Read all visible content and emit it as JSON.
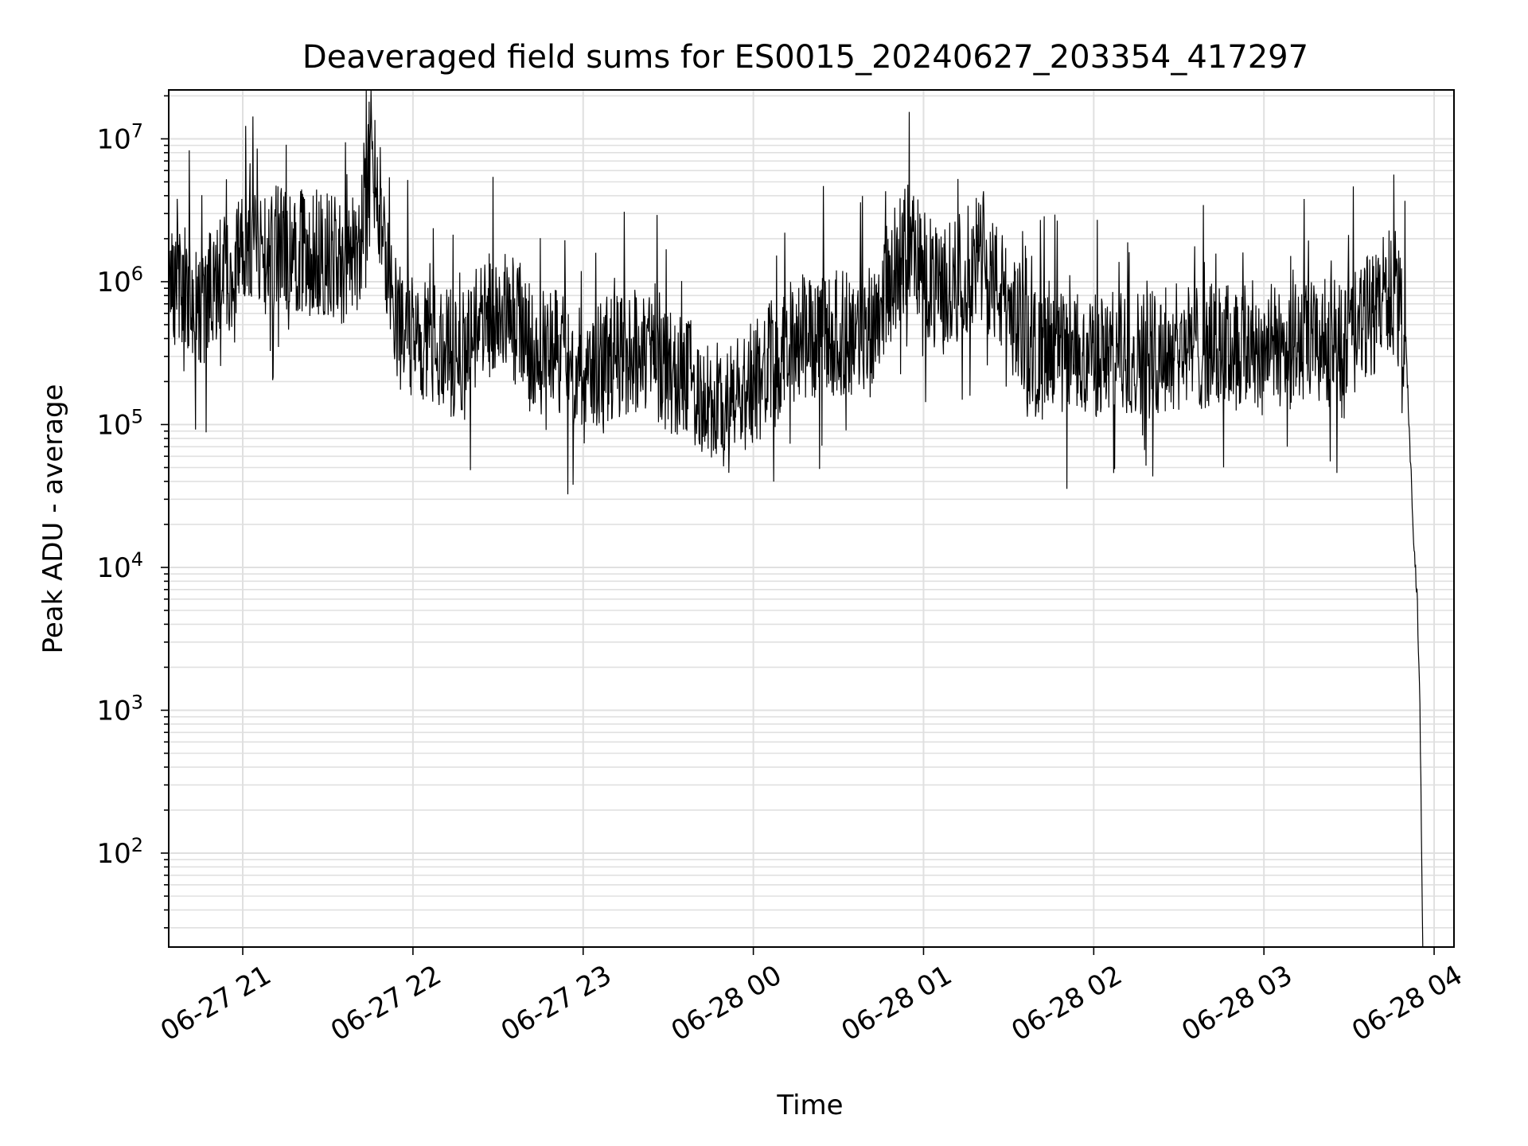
{
  "chart_data": {
    "type": "line",
    "title": "Deaveraged field sums for ES0015_20240627_203354_417297",
    "xlabel": "Time",
    "ylabel": "Peak ADU - average",
    "yscale": "log",
    "ylim": [
      22,
      22000000
    ],
    "xlim": [
      "2024-06-27 20:33:54",
      "2024-06-28 04:07:00"
    ],
    "grid": true,
    "line_color": "#000000",
    "grid_color": "#e0e0e0",
    "x_tick_labels": [
      "06-27 21",
      "06-27 22",
      "06-27 23",
      "06-28 00",
      "06-28 01",
      "06-28 02",
      "06-28 03",
      "06-28 04"
    ],
    "y_tick_labels": [
      {
        "base": "10",
        "exp": "2"
      },
      {
        "base": "10",
        "exp": "3"
      },
      {
        "base": "10",
        "exp": "4"
      },
      {
        "base": "10",
        "exp": "5"
      },
      {
        "base": "10",
        "exp": "6"
      },
      {
        "base": "10",
        "exp": "7"
      }
    ],
    "series": [
      {
        "x": [
          "2024-06-27 20:34",
          "2024-06-27 20:45",
          "2024-06-27 21:00",
          "2024-06-27 21:15",
          "2024-06-27 21:30",
          "2024-06-27 21:40",
          "2024-06-27 21:45",
          "2024-06-27 21:55",
          "2024-06-27 22:15",
          "2024-06-27 22:30",
          "2024-06-27 22:45",
          "2024-06-27 23:00",
          "2024-06-27 23:20",
          "2024-06-27 23:40",
          "2024-06-27 23:50",
          "2024-06-28 00:15",
          "2024-06-28 00:40",
          "2024-06-28 00:55",
          "2024-06-28 01:05",
          "2024-06-28 01:20",
          "2024-06-28 01:40",
          "2024-06-28 02:00",
          "2024-06-28 02:30",
          "2024-06-28 03:00",
          "2024-06-28 03:30",
          "2024-06-28 03:45",
          "2024-06-28 03:50",
          "2024-06-28 03:51",
          "2024-06-28 03:53",
          "2024-06-28 03:54",
          "2024-06-28 03:55",
          "2024-06-28 03:56"
        ],
        "y": [
          1100000,
          700000,
          1500000,
          1800000,
          1500000,
          1200000,
          9000000,
          500000,
          300000,
          700000,
          350000,
          250000,
          350000,
          180000,
          120000,
          400000,
          450000,
          2000000,
          800000,
          1500000,
          300000,
          300000,
          350000,
          350000,
          380000,
          900000,
          400000,
          120000,
          13000,
          6500,
          1000,
          22
        ]
      }
    ]
  }
}
